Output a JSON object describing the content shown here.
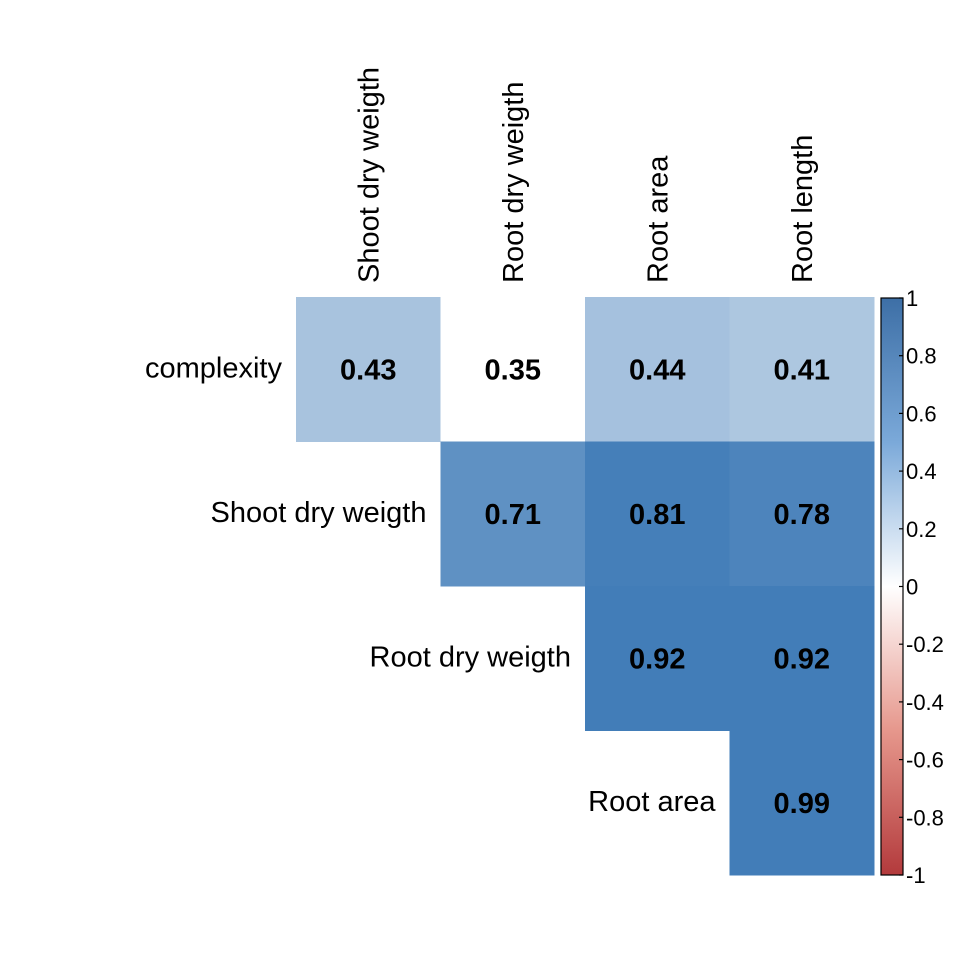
{
  "chart_data": {
    "type": "heatmap",
    "row_labels": [
      "complexity",
      "Shoot dry weigth",
      "Root dry weigth",
      "Root area"
    ],
    "col_labels": [
      "Shoot dry weigth",
      "Root dry weigth",
      "Root area",
      "Root length"
    ],
    "values": [
      [
        0.43,
        0.35,
        0.44,
        0.41
      ],
      [
        null,
        0.71,
        0.81,
        0.78
      ],
      [
        null,
        null,
        0.92,
        0.92
      ],
      [
        null,
        null,
        null,
        0.99
      ]
    ],
    "value_labels": [
      [
        "0.43",
        "0.35",
        "0.44",
        "0.41"
      ],
      [
        "",
        "0.71",
        "0.81",
        "0.78"
      ],
      [
        "",
        "",
        "0.92",
        "0.92"
      ],
      [
        "",
        "",
        "",
        "0.99"
      ]
    ],
    "colorbar": {
      "range": [
        -1,
        1
      ],
      "ticks": [
        "1",
        "0.8",
        "0.6",
        "0.4",
        "0.2",
        "0",
        "-0.2",
        "-0.4",
        "-0.6",
        "-0.8",
        "-1"
      ],
      "low_color": "#B2182B",
      "mid_color": "#FFFFFF",
      "high_color": "#2166AC"
    }
  }
}
